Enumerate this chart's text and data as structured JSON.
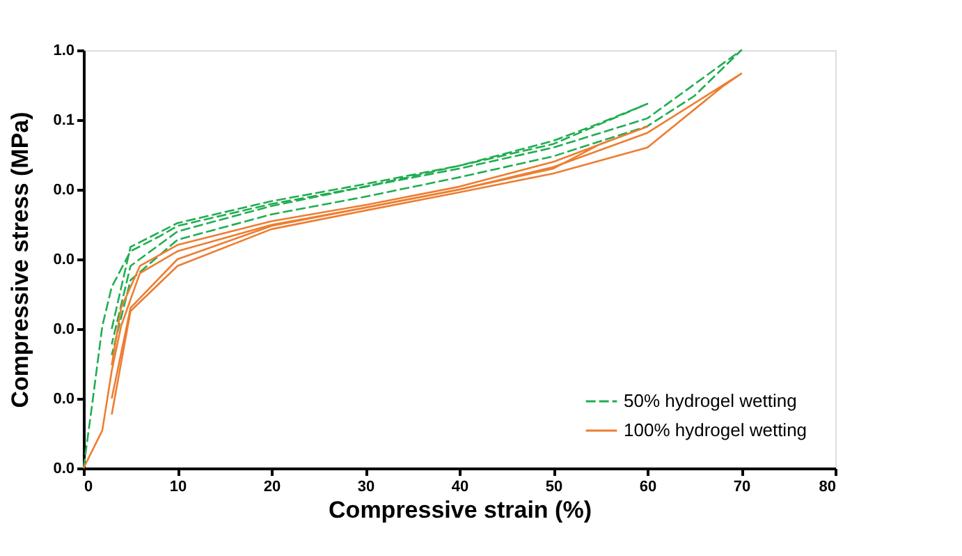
{
  "chart_data": {
    "type": "line",
    "xlabel": "Compressive strain (%)",
    "ylabel": "Compressive stress  (MPa)",
    "log": "y",
    "xlim": [
      0,
      80
    ],
    "xticks": [
      0,
      10,
      20,
      30,
      40,
      50,
      60,
      70,
      80
    ],
    "ylim": [
      1e-06,
      1
    ],
    "yticks": [
      {
        "value": 1,
        "label": "1.0"
      },
      {
        "value": 0.1,
        "label": "0.1"
      },
      {
        "value": 0.01,
        "label": "0.0"
      },
      {
        "value": 0.001,
        "label": "0.0"
      },
      {
        "value": 0.0001,
        "label": "0.0"
      },
      {
        "value": 1e-05,
        "label": "0.0"
      },
      {
        "value": 1e-06,
        "label": "0.0"
      }
    ],
    "grid": false,
    "legend": "bottom right",
    "series": [
      {
        "name": "50% hydrogel wetting",
        "color": "#1fae4f",
        "line_style": "dashed",
        "x": [
          0,
          1,
          2,
          3,
          5,
          8,
          10,
          20,
          30,
          40,
          50,
          60,
          70,
          65,
          60,
          50,
          40,
          30,
          20,
          10,
          5,
          3
        ],
        "values": [
          1e-06,
          1e-05,
          0.00011,
          0.0004,
          0.0013,
          0.0021,
          0.003,
          0.0062,
          0.011,
          0.02,
          0.04,
          0.105,
          1.0,
          0.22,
          0.081,
          0.03,
          0.015,
          0.0079,
          0.0044,
          0.0019,
          0.0005,
          4.2e-05
        ]
      },
      {
        "color": "#1fae4f",
        "line_style": "dashed",
        "x": [
          3,
          5,
          10,
          20,
          30,
          40,
          50,
          60,
          55,
          50,
          40,
          30,
          20,
          10,
          5,
          3
        ],
        "values": [
          0.0001,
          0.0015,
          0.0033,
          0.0068,
          0.012,
          0.022,
          0.045,
          0.17,
          0.09,
          0.05,
          0.022,
          0.011,
          0.0058,
          0.0025,
          0.0008,
          6e-05
        ]
      },
      {
        "name": "100% hydrogel wetting",
        "color": "#ed7d31",
        "line_style": "solid",
        "x": [
          0,
          2,
          3,
          4,
          6,
          10,
          20,
          30,
          40,
          50,
          60,
          70,
          68,
          60,
          50,
          40,
          30,
          20,
          10,
          5,
          3
        ],
        "values": [
          1e-06,
          3.5e-06,
          2.5e-05,
          0.00011,
          0.00063,
          0.0013,
          0.0031,
          0.0055,
          0.01,
          0.021,
          0.065,
          0.46,
          0.3,
          0.04,
          0.017,
          0.0091,
          0.005,
          0.0027,
          0.0008,
          0.00018,
          5.9e-06
        ]
      },
      {
        "color": "#ed7d31",
        "line_style": "solid",
        "x": [
          3,
          4,
          6,
          10,
          20,
          30,
          40,
          50,
          60,
          55,
          50,
          40,
          30,
          20,
          10,
          5,
          3
        ],
        "values": [
          3e-05,
          0.0002,
          0.0008,
          0.0016,
          0.0035,
          0.006,
          0.011,
          0.025,
          0.08,
          0.045,
          0.02,
          0.01,
          0.0055,
          0.003,
          0.001,
          0.0002,
          1e-05
        ]
      }
    ]
  }
}
